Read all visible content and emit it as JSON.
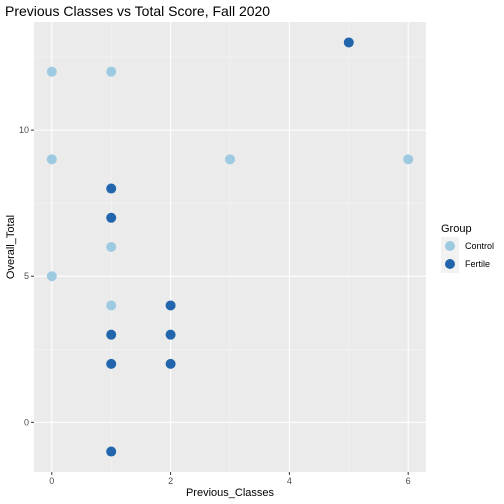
{
  "chart_data": {
    "type": "scatter",
    "title": "Previous Classes vs Total Score, Fall 2020",
    "xlabel": "Previous_Classes",
    "ylabel": "Overall_Total",
    "xlim": [
      -0.3,
      6.3
    ],
    "ylim": [
      -1.7,
      13.7
    ],
    "x_ticks": [
      0,
      2,
      4,
      6
    ],
    "y_ticks": [
      0,
      5,
      10
    ],
    "grid": true,
    "legend": {
      "title": "Group",
      "position": "right"
    },
    "series": [
      {
        "name": "Control",
        "color": "#9ecae1",
        "points": [
          {
            "x": 0,
            "y": 12
          },
          {
            "x": 0,
            "y": 9
          },
          {
            "x": 0,
            "y": 5
          },
          {
            "x": 1,
            "y": 12
          },
          {
            "x": 1,
            "y": 6
          },
          {
            "x": 1,
            "y": 4
          },
          {
            "x": 3,
            "y": 9
          },
          {
            "x": 6,
            "y": 9
          }
        ]
      },
      {
        "name": "Fertile",
        "color": "#2166ac",
        "points": [
          {
            "x": 1,
            "y": 8
          },
          {
            "x": 1,
            "y": 7
          },
          {
            "x": 1,
            "y": 3
          },
          {
            "x": 1,
            "y": 2
          },
          {
            "x": 1,
            "y": -1
          },
          {
            "x": 2,
            "y": 4
          },
          {
            "x": 2,
            "y": 3
          },
          {
            "x": 2,
            "y": 2
          },
          {
            "x": 5,
            "y": 13
          }
        ]
      }
    ]
  }
}
